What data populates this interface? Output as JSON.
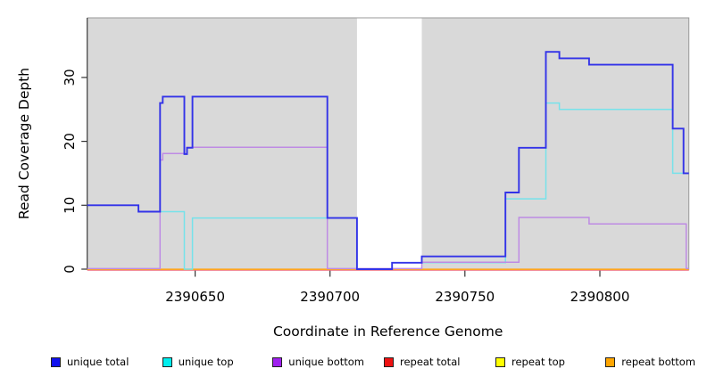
{
  "chart_data": {
    "type": "line",
    "subtype": "step-coverage",
    "title": "",
    "xlabel": "Coordinate in Reference Genome",
    "ylabel": "Read Coverage Depth",
    "xlim": [
      2390610,
      2390833
    ],
    "ylim": [
      0,
      39
    ],
    "x_ticks": [
      2390650,
      2390700,
      2390750,
      2390800
    ],
    "y_ticks": [
      0,
      10,
      20,
      30
    ],
    "grid": false,
    "background_color": "#ffffff",
    "shaded_region_color": "#d9d9d9",
    "shaded_regions": [
      {
        "from": 2390610,
        "to": 2390710
      },
      {
        "from": 2390734,
        "to": 2390833
      }
    ],
    "draw_order": [
      "repeat total",
      "repeat top",
      "repeat bottom",
      "unique top",
      "unique bottom",
      "unique total"
    ],
    "series": [
      {
        "name": "unique total",
        "legend_color": "#1111EE",
        "line_color": "#3333E8",
        "line_width": 1.9,
        "steps": [
          [
            2390610,
            10
          ],
          [
            2390629,
            9
          ],
          [
            2390637,
            26
          ],
          [
            2390638,
            27
          ],
          [
            2390646,
            18
          ],
          [
            2390647,
            19
          ],
          [
            2390649,
            27
          ],
          [
            2390699,
            8
          ],
          [
            2390710,
            0
          ],
          [
            2390723,
            1
          ],
          [
            2390734,
            2
          ],
          [
            2390765,
            12
          ],
          [
            2390770,
            19
          ],
          [
            2390780,
            34
          ],
          [
            2390785,
            33
          ],
          [
            2390796,
            32
          ],
          [
            2390827,
            22
          ],
          [
            2390831,
            15
          ]
        ]
      },
      {
        "name": "unique top",
        "legend_color": "#00EEEE",
        "line_color": "#76E2EA",
        "line_width": 1.5,
        "steps": [
          [
            2390610,
            10
          ],
          [
            2390629,
            9
          ],
          [
            2390646,
            0
          ],
          [
            2390649,
            8
          ],
          [
            2390710,
            0
          ],
          [
            2390723,
            1
          ],
          [
            2390765,
            11
          ],
          [
            2390780,
            26
          ],
          [
            2390785,
            25
          ],
          [
            2390827,
            15
          ]
        ]
      },
      {
        "name": "unique bottom",
        "legend_color": "#A020F0",
        "line_color": "#BE8BE4",
        "line_width": 1.5,
        "steps": [
          [
            2390610,
            0
          ],
          [
            2390637,
            17
          ],
          [
            2390638,
            18
          ],
          [
            2390647,
            19
          ],
          [
            2390699,
            0
          ],
          [
            2390734,
            1
          ],
          [
            2390770,
            8
          ],
          [
            2390796,
            7
          ],
          [
            2390832,
            0
          ]
        ]
      },
      {
        "name": "repeat total",
        "legend_color": "#EE1111",
        "line_color": "#EE6A7A",
        "line_width": 1.4,
        "steps": [
          [
            2390610,
            0
          ]
        ]
      },
      {
        "name": "repeat top",
        "legend_color": "#FFFF00",
        "line_color": "#F5F500",
        "line_width": 1.4,
        "steps": [
          [
            2390610,
            0
          ]
        ]
      },
      {
        "name": "repeat bottom",
        "legend_color": "#FFA500",
        "line_color": "#FFA51E",
        "line_width": 1.7,
        "steps": [
          [
            2390610,
            0
          ]
        ]
      }
    ],
    "legend": {
      "position": "bottom",
      "entries": [
        {
          "label": "unique total",
          "color": "#1111EE"
        },
        {
          "label": "unique top",
          "color": "#00EEEE"
        },
        {
          "label": "unique bottom",
          "color": "#A020F0"
        },
        {
          "label": "repeat total",
          "color": "#EE1111"
        },
        {
          "label": "repeat top",
          "color": "#FFFF00"
        },
        {
          "label": "repeat bottom",
          "color": "#FFA500"
        }
      ]
    }
  }
}
